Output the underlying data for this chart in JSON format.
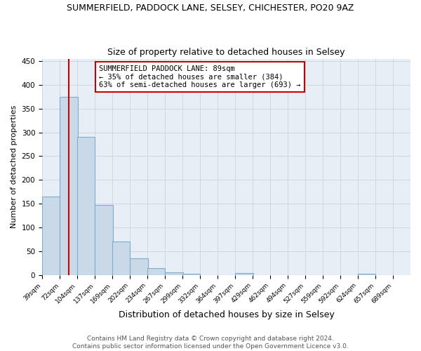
{
  "title_main": "SUMMERFIELD, PADDOCK LANE, SELSEY, CHICHESTER, PO20 9AZ",
  "title_sub": "Size of property relative to detached houses in Selsey",
  "xlabel": "Distribution of detached houses by size in Selsey",
  "ylabel": "Number of detached properties",
  "bar_left_edges": [
    39,
    72,
    104,
    137,
    169,
    202,
    234,
    267,
    299,
    332,
    364,
    397,
    429,
    462,
    494,
    527,
    559,
    592,
    624,
    657
  ],
  "bar_heights": [
    165,
    375,
    290,
    148,
    70,
    35,
    15,
    6,
    3,
    0,
    0,
    4,
    0,
    0,
    0,
    0,
    0,
    0,
    3,
    0
  ],
  "bin_width": 33,
  "bar_color": "#c9d9e8",
  "bar_edge_color": "#7aaecc",
  "bar_edge_width": 0.8,
  "red_line_x": 89,
  "red_line_color": "#cc0000",
  "annotation_text": "SUMMERFIELD PADDOCK LANE: 89sqm\n← 35% of detached houses are smaller (384)\n63% of semi-detached houses are larger (693) →",
  "annotation_box_color": "#ffffff",
  "annotation_box_edge_color": "#cc0000",
  "ylim": [
    0,
    455
  ],
  "yticks": [
    0,
    50,
    100,
    150,
    200,
    250,
    300,
    350,
    400,
    450
  ],
  "tick_labels": [
    "39sqm",
    "72sqm",
    "104sqm",
    "137sqm",
    "169sqm",
    "202sqm",
    "234sqm",
    "267sqm",
    "299sqm",
    "332sqm",
    "364sqm",
    "397sqm",
    "429sqm",
    "462sqm",
    "494sqm",
    "527sqm",
    "559sqm",
    "592sqm",
    "624sqm",
    "657sqm",
    "689sqm"
  ],
  "tick_positions": [
    39,
    72,
    104,
    137,
    169,
    202,
    234,
    267,
    299,
    332,
    364,
    397,
    429,
    462,
    494,
    527,
    559,
    592,
    624,
    657,
    689
  ],
  "grid_color": "#c8d4df",
  "bg_color": "#e8eef5",
  "footer_text": "Contains HM Land Registry data © Crown copyright and database right 2024.\nContains public sector information licensed under the Open Government Licence v3.0.",
  "title_fontsize": 9,
  "subtitle_fontsize": 9,
  "xlabel_fontsize": 9,
  "ylabel_fontsize": 8,
  "tick_fontsize": 6.5,
  "annotation_fontsize": 7.5,
  "footer_fontsize": 6.5,
  "xlim_left": 39,
  "xlim_right": 722
}
